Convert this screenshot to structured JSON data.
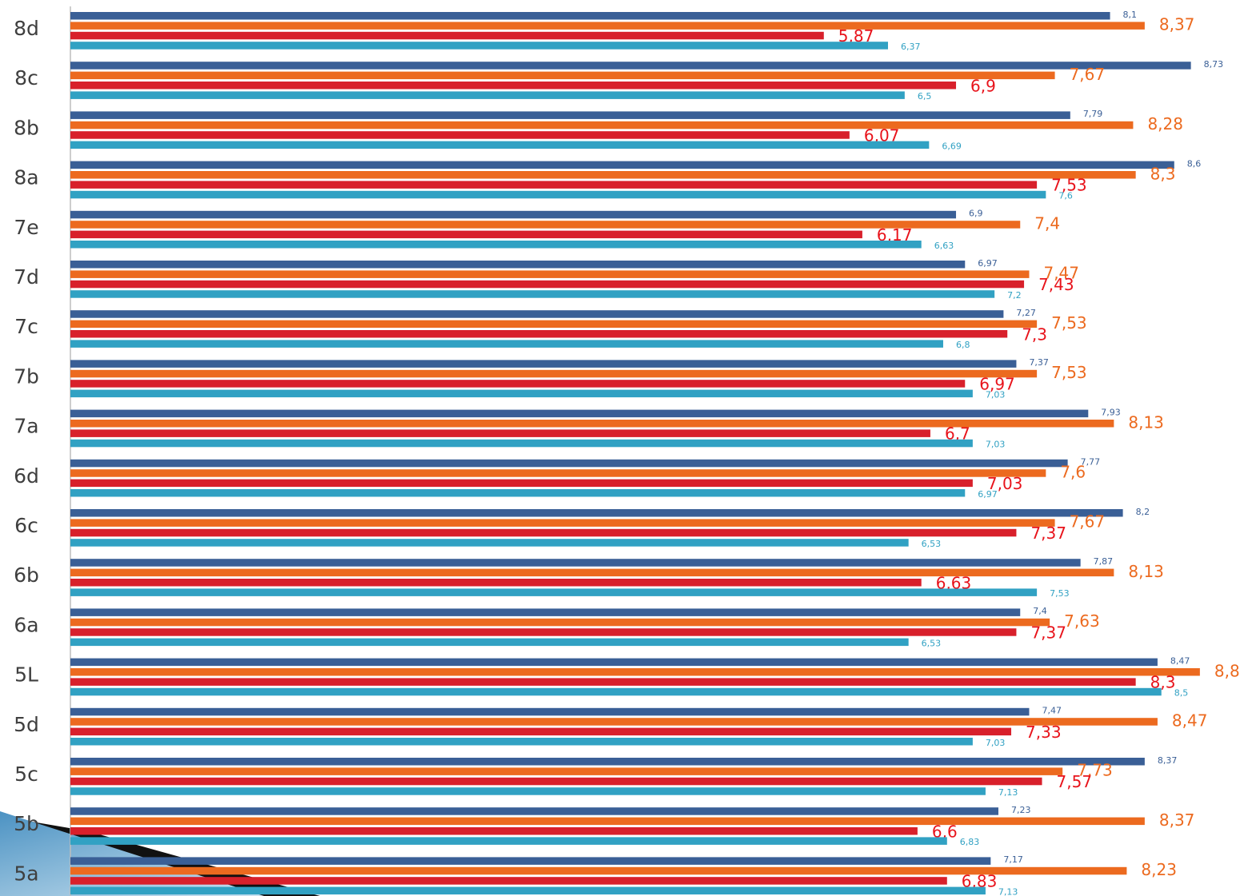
{
  "chart_data": {
    "type": "hbar",
    "categories": [
      "8d",
      "8c",
      "8b",
      "8a",
      "7e",
      "7d",
      "7c",
      "7b",
      "7a",
      "6d",
      "6c",
      "6b",
      "6a",
      "5L",
      "5d",
      "5c",
      "5b",
      "5a"
    ],
    "xlim": [
      0,
      9.1
    ],
    "series": [
      {
        "color": "#3a5f96",
        "values": [
          8.1,
          8.73,
          7.79,
          8.6,
          6.9,
          6.97,
          7.27,
          7.37,
          7.93,
          7.77,
          8.2,
          7.87,
          7.4,
          8.47,
          7.47,
          8.37,
          7.23,
          7.17
        ],
        "value_labels": [
          "8,1",
          "8,73",
          "7,79",
          "8,6",
          "6,9",
          "6,97",
          "7,27",
          "7,37",
          "7,93",
          "7,77",
          "8,2",
          "7,87",
          "7,4",
          "8,47",
          "7,47",
          "8,37",
          "7,23",
          "7,17"
        ]
      },
      {
        "color": "#ec6a1f",
        "values": [
          8.37,
          7.67,
          8.28,
          8.3,
          7.4,
          7.47,
          7.53,
          7.53,
          8.13,
          7.6,
          7.67,
          8.13,
          7.63,
          8.8,
          8.47,
          7.73,
          8.37,
          8.23
        ],
        "value_labels": [
          "8,37",
          "7,67",
          "8,28",
          "8,3",
          "7,4",
          "7,47",
          "7,53",
          "7,53",
          "8,13",
          "7,6",
          "7,67",
          "8,13",
          "7,63",
          "8,8",
          "8,47",
          "7,73",
          "8,37",
          "8,23"
        ]
      },
      {
        "color": "#d8202b",
        "values": [
          5.87,
          6.9,
          6.07,
          7.53,
          6.17,
          7.43,
          7.3,
          6.97,
          6.7,
          7.03,
          7.37,
          6.63,
          7.37,
          8.3,
          7.33,
          7.57,
          6.6,
          6.83
        ],
        "value_labels": [
          "5,87",
          "6,9",
          "6,07",
          "7,53",
          "6,17",
          "7,43",
          "7,3",
          "6,97",
          "6,7",
          "7,03",
          "7,37",
          "6,63",
          "7,37",
          "8,3",
          "7,33",
          "7,57",
          "6,6",
          "6,83"
        ]
      },
      {
        "color": "#31a1c3",
        "values": [
          6.37,
          6.5,
          6.69,
          7.6,
          6.63,
          7.2,
          6.8,
          7.03,
          7.03,
          6.97,
          6.53,
          7.53,
          6.53,
          8.5,
          7.03,
          7.13,
          6.83,
          7.13
        ],
        "value_labels": [
          "6,37",
          "6,5",
          "6,69",
          "7,6",
          "6,63",
          "7,2",
          "6,8",
          "7,03",
          "7,03",
          "6,97",
          "6,53",
          "7,53",
          "6,53",
          "8,5",
          "7,03",
          "7,13",
          "6,83",
          "7,13"
        ]
      }
    ]
  }
}
